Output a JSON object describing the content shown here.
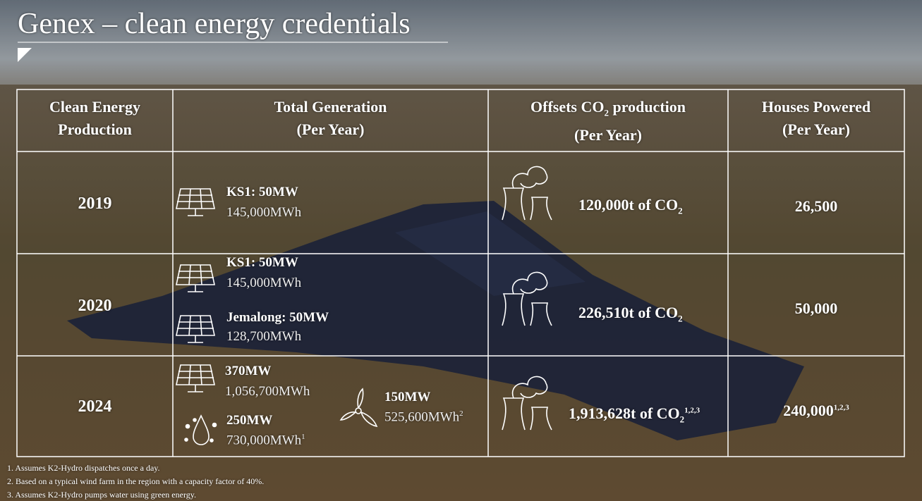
{
  "title": "Genex – clean energy credentials",
  "table": {
    "headers": [
      {
        "line1": "Clean Energy",
        "line2": "Production"
      },
      {
        "line1": "Total Generation",
        "line2": "(Per Year)"
      },
      {
        "pre": "Offsets CO",
        "sub": "2",
        "post": "production",
        "line2": "(Per Year)"
      },
      {
        "line1": "Houses Powered",
        "line2": "(Per Year)"
      }
    ],
    "rows": [
      {
        "year": "2019",
        "generation": [
          {
            "name": "KS1: 50MW",
            "output": "145,000MWh"
          }
        ],
        "offset": {
          "text": "120,000t of CO",
          "sub": "2"
        },
        "houses": {
          "text": "26,500"
        }
      },
      {
        "year": "2020",
        "generation": [
          {
            "name": "KS1: 50MW",
            "output": "145,000MWh"
          },
          {
            "name": "Jemalong: 50MW",
            "output": "128,700MWh"
          }
        ],
        "offset": {
          "text": "226,510t of CO",
          "sub": "2"
        },
        "houses": {
          "text": "50,000"
        }
      },
      {
        "year": "2024",
        "generation": [
          {
            "name": "370MW",
            "output": "1,056,700MWh"
          },
          {
            "name": "250MW",
            "output": "730,000MWh",
            "sup": "1"
          },
          {
            "name": "150MW",
            "output": "525,600MWh",
            "sup": "2"
          }
        ],
        "offset": {
          "text": "1,913,628t of CO",
          "sub": "2",
          "sup": "1,2,3"
        },
        "houses": {
          "text": "240,000",
          "sup": "1,2,3"
        }
      }
    ]
  },
  "footnotes": [
    "1. Assumes K2-Hydro dispatches once a day.",
    "2. Based on a typical wind farm in the region with a capacity factor of 40%.",
    "3. Assumes K2-Hydro pumps water using green energy."
  ]
}
